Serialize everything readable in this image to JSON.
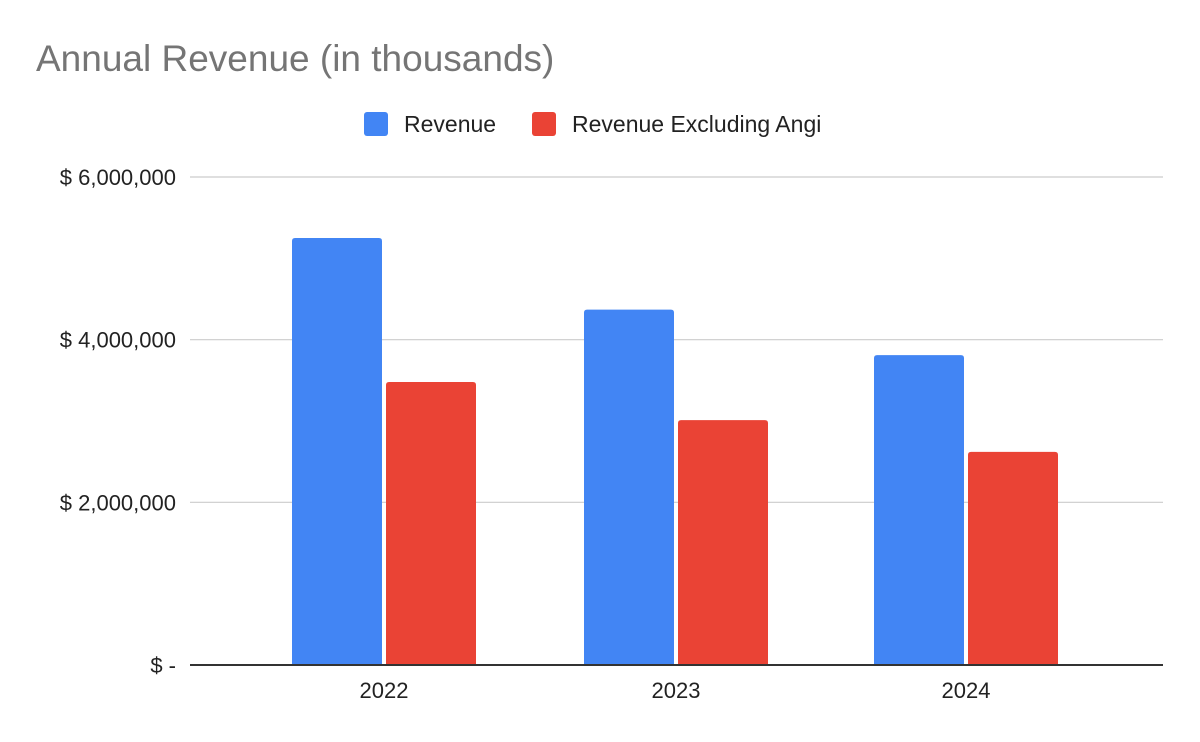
{
  "chart_data": {
    "type": "bar",
    "title": "Annual Revenue (in thousands)",
    "categories": [
      "2022",
      "2023",
      "2024"
    ],
    "series": [
      {
        "name": "Revenue",
        "color": "#4285f4",
        "values": [
          5250000,
          4370000,
          3810000
        ]
      },
      {
        "name": "Revenue Excluding Angi",
        "color": "#ea4335",
        "values": [
          3480000,
          3010000,
          2620000
        ]
      }
    ],
    "yticks": [
      {
        "value": 0,
        "label": "$ -"
      },
      {
        "value": 2000000,
        "label": "$ 2,000,000"
      },
      {
        "value": 4000000,
        "label": "$ 4,000,000"
      },
      {
        "value": 6000000,
        "label": "$ 6,000,000"
      }
    ],
    "ylim": [
      0,
      6000000
    ],
    "xlabel": "",
    "ylabel": "",
    "legend_position": "top-center",
    "grid": true
  }
}
